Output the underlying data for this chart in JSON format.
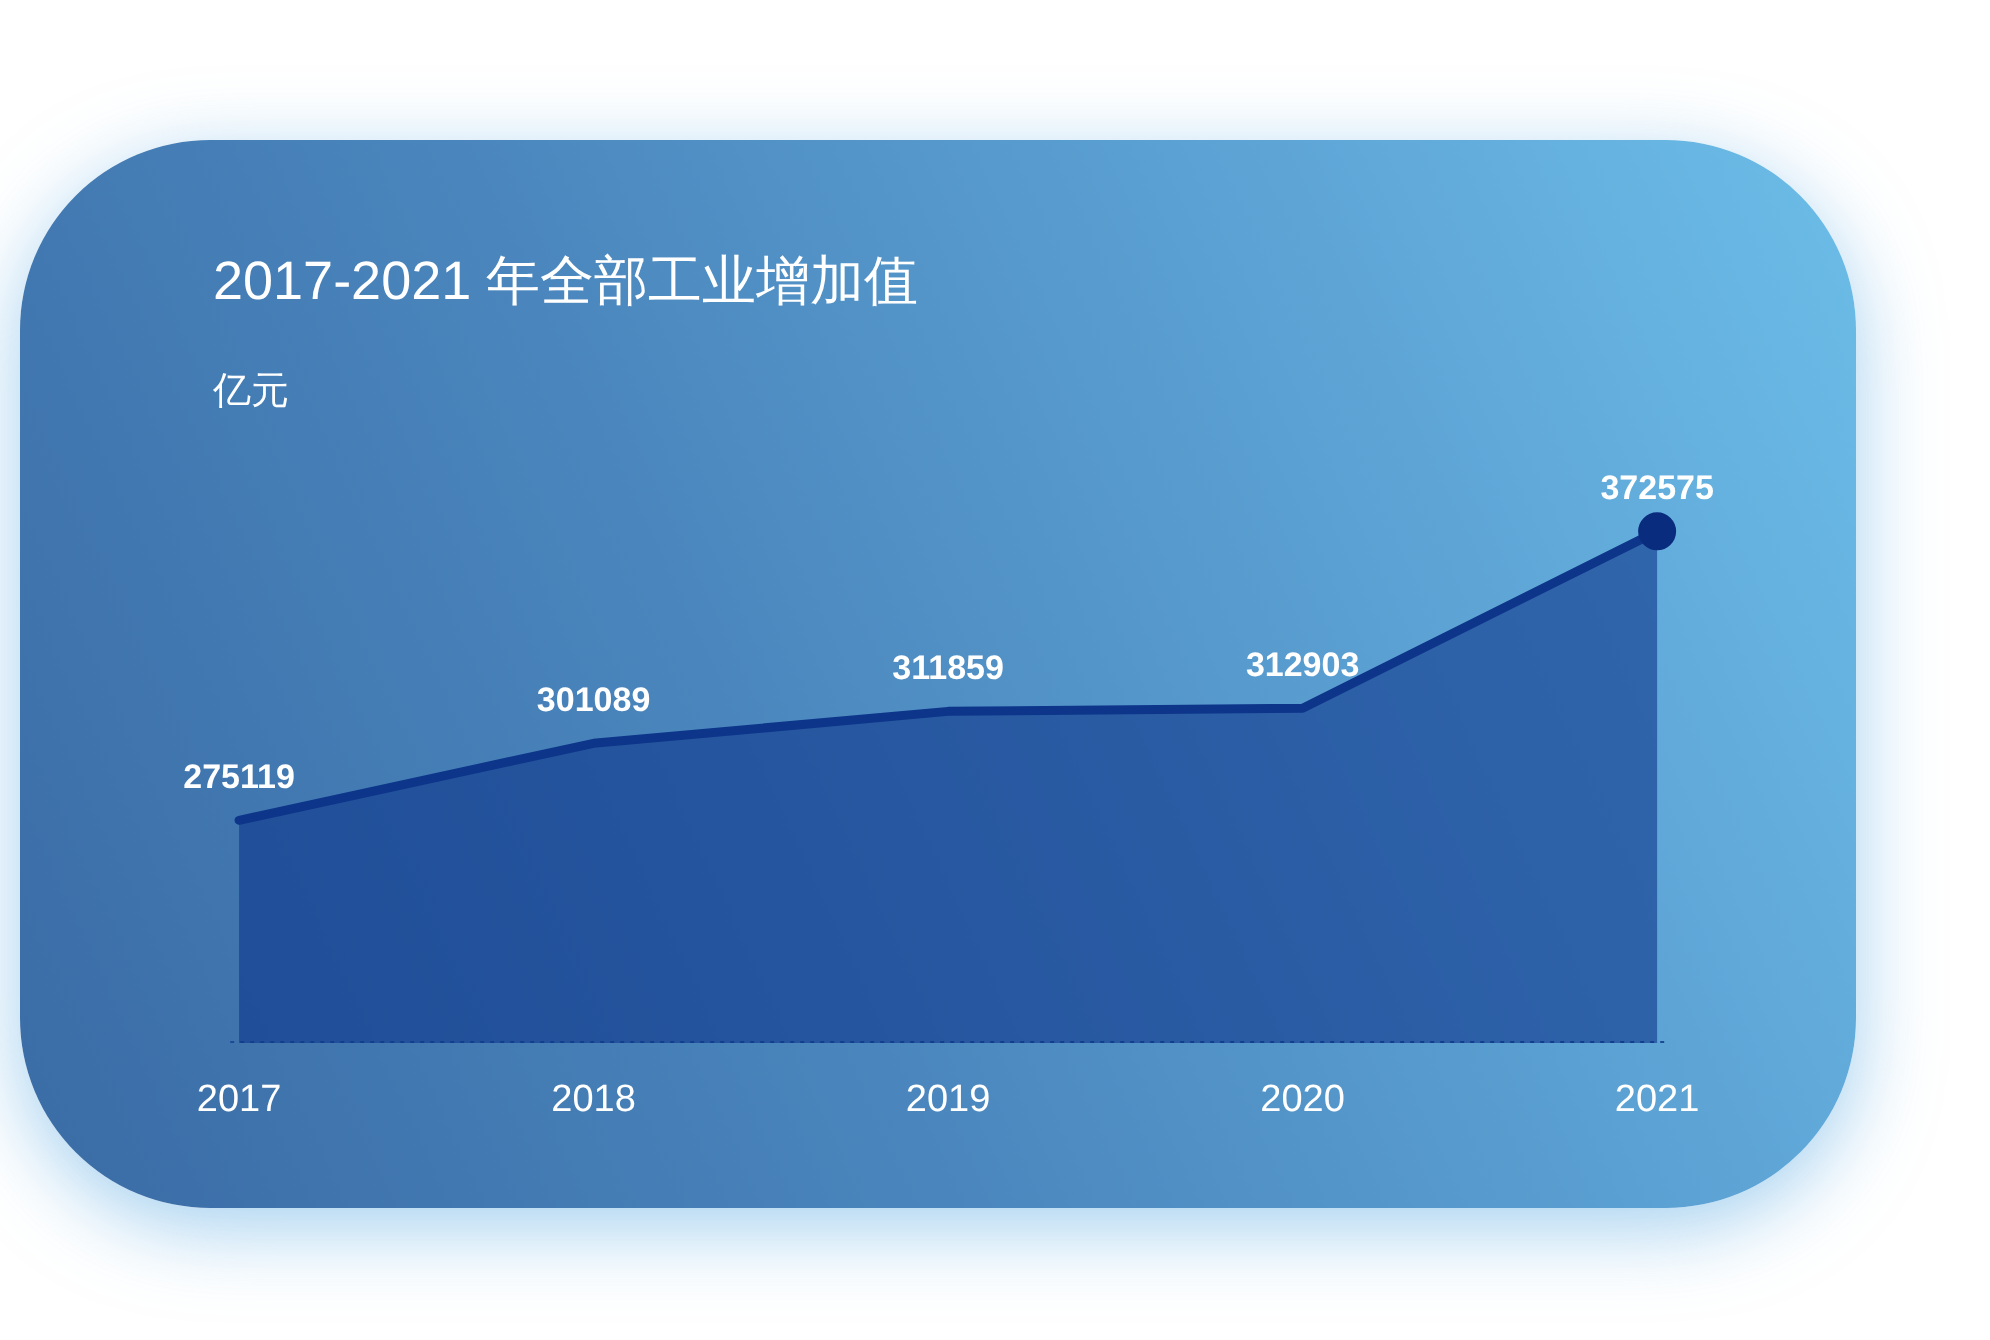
{
  "chart_data": {
    "type": "area",
    "title": "2017-2021 年全部工业增加值",
    "ylabel": "亿元",
    "categories": [
      "2017",
      "2018",
      "2019",
      "2020",
      "2021"
    ],
    "series": [
      {
        "color": "#0d358a",
        "values": [
          275119,
          301089,
          311859,
          312903,
          372575
        ],
        "value_labels": [
          "275119",
          "301089",
          "311859",
          "312903",
          "372575"
        ]
      },
      {
        "type": "scatter",
        "values": [
          null,
          null,
          null,
          null,
          372575
        ],
        "color": "#0a2c7e",
        "marker": "circle"
      }
    ],
    "ref_lines": [
      {
        "axis": "y",
        "value": 200000,
        "color": "#1d4a94",
        "line_style": "dotted"
      }
    ],
    "tick_labels": "x"
  }
}
